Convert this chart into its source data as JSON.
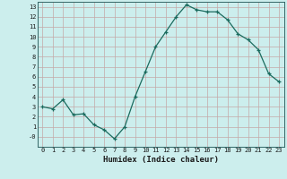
{
  "x": [
    0,
    1,
    2,
    3,
    4,
    5,
    6,
    7,
    8,
    9,
    10,
    11,
    12,
    13,
    14,
    15,
    16,
    17,
    18,
    19,
    20,
    21,
    22,
    23
  ],
  "y": [
    3,
    2.8,
    3.7,
    2.2,
    2.3,
    1.2,
    0.7,
    -0.2,
    1.0,
    4.0,
    6.5,
    9.0,
    10.5,
    12.0,
    13.2,
    12.7,
    12.5,
    12.5,
    11.7,
    10.3,
    9.7,
    8.7,
    6.3,
    5.5
  ],
  "xlabel": "Humidex (Indice chaleur)",
  "ylim": [
    -1,
    13.5
  ],
  "yticks": [
    0,
    1,
    2,
    3,
    4,
    5,
    6,
    7,
    8,
    9,
    10,
    11,
    12,
    13
  ],
  "ytick_labels": [
    "-0",
    "1",
    "2",
    "3",
    "4",
    "5",
    "6",
    "7",
    "8",
    "9",
    "10",
    "11",
    "12",
    "13"
  ],
  "xticks": [
    0,
    1,
    2,
    3,
    4,
    5,
    6,
    7,
    8,
    9,
    10,
    11,
    12,
    13,
    14,
    15,
    16,
    17,
    18,
    19,
    20,
    21,
    22,
    23
  ],
  "line_color": "#1a6b5e",
  "marker": "+",
  "bg_color": "#cceeed",
  "grid_color": "#c4a8a8",
  "spine_color": "#336666",
  "xlabel_color": "#1a1a1a",
  "tick_color": "#1a1a1a"
}
